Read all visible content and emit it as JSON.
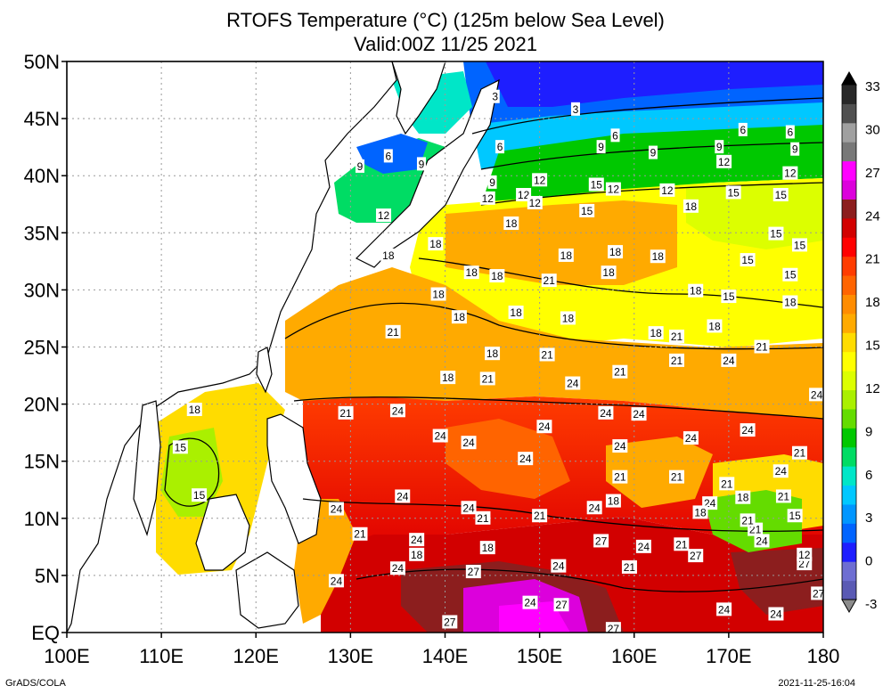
{
  "title": {
    "line1": "RTOFS Temperature (°C) (125m below Sea Level)",
    "line2": "Valid:00Z 11/25 2021"
  },
  "axes": {
    "lat_labels": [
      "EQ",
      "5N",
      "10N",
      "15N",
      "20N",
      "25N",
      "30N",
      "35N",
      "40N",
      "45N",
      "50N"
    ],
    "lon_labels": [
      "100E",
      "110E",
      "120E",
      "130E",
      "140E",
      "150E",
      "160E",
      "170E",
      "180"
    ],
    "lat_range": [
      0,
      50
    ],
    "lon_range": [
      100,
      180
    ],
    "grid": "dotted"
  },
  "colorbar": {
    "tick_labels": [
      "-3",
      "0",
      "3",
      "6",
      "9",
      "12",
      "15",
      "18",
      "21",
      "24",
      "27",
      "30",
      "33"
    ],
    "colors": [
      "#5a5ab4",
      "#6e6ed2",
      "#1e1eff",
      "#0064ff",
      "#0096ff",
      "#00c8ff",
      "#00e6c8",
      "#00dc64",
      "#00c800",
      "#64dc00",
      "#aaf000",
      "#dcff00",
      "#ffff00",
      "#ffdc00",
      "#ffaa00",
      "#ff8c00",
      "#ff6400",
      "#ff3c00",
      "#ff0000",
      "#d20000",
      "#8c1e1e",
      "#dc00dc",
      "#ff00ff",
      "#787878",
      "#a0a0a0",
      "#505050",
      "#282828"
    ]
  },
  "contour_labels": [
    {
      "text": "3",
      "lon": 145.3,
      "lat": 46.9
    },
    {
      "text": "3",
      "lon": 153.8,
      "lat": 45.8
    },
    {
      "text": "6",
      "lon": 134.0,
      "lat": 41.7
    },
    {
      "text": "6",
      "lon": 145.8,
      "lat": 42.5
    },
    {
      "text": "6",
      "lon": 158.0,
      "lat": 43.5
    },
    {
      "text": "6",
      "lon": 171.5,
      "lat": 44.0
    },
    {
      "text": "6",
      "lon": 176.5,
      "lat": 43.8
    },
    {
      "text": "9",
      "lon": 131.0,
      "lat": 40.8
    },
    {
      "text": "9",
      "lon": 137.5,
      "lat": 41.0
    },
    {
      "text": "9",
      "lon": 156.5,
      "lat": 42.5
    },
    {
      "text": "9",
      "lon": 162.0,
      "lat": 42.0
    },
    {
      "text": "9",
      "lon": 177.0,
      "lat": 42.3
    },
    {
      "text": "9",
      "lon": 169.0,
      "lat": 42.5
    },
    {
      "text": "9",
      "lon": 145.0,
      "lat": 39.4
    },
    {
      "text": "12",
      "lon": 133.5,
      "lat": 36.5
    },
    {
      "text": "12",
      "lon": 144.5,
      "lat": 38.0
    },
    {
      "text": "12",
      "lon": 150.0,
      "lat": 39.6
    },
    {
      "text": "12",
      "lon": 148.3,
      "lat": 38.3
    },
    {
      "text": "12",
      "lon": 149.5,
      "lat": 37.6
    },
    {
      "text": "12",
      "lon": 157.8,
      "lat": 38.8
    },
    {
      "text": "12",
      "lon": 163.5,
      "lat": 38.7
    },
    {
      "text": "12",
      "lon": 169.5,
      "lat": 41.2
    },
    {
      "text": "12",
      "lon": 176.5,
      "lat": 40.2
    },
    {
      "text": "15",
      "lon": 156.0,
      "lat": 39.2
    },
    {
      "text": "15",
      "lon": 155.0,
      "lat": 36.9
    },
    {
      "text": "15",
      "lon": 170.5,
      "lat": 38.5
    },
    {
      "text": "15",
      "lon": 175.5,
      "lat": 38.3
    },
    {
      "text": "15",
      "lon": 175.0,
      "lat": 34.9
    },
    {
      "text": "15",
      "lon": 177.5,
      "lat": 33.9
    },
    {
      "text": "15",
      "lon": 172.0,
      "lat": 32.6
    },
    {
      "text": "15",
      "lon": 176.5,
      "lat": 31.3
    },
    {
      "text": "15",
      "lon": 170.0,
      "lat": 29.4
    },
    {
      "text": "18",
      "lon": 134.0,
      "lat": 33.0
    },
    {
      "text": "18",
      "lon": 139.0,
      "lat": 34.0
    },
    {
      "text": "18",
      "lon": 147.0,
      "lat": 35.8
    },
    {
      "text": "18",
      "lon": 166.0,
      "lat": 37.3
    },
    {
      "text": "18",
      "lon": 152.8,
      "lat": 33.0
    },
    {
      "text": "18",
      "lon": 158.0,
      "lat": 33.3
    },
    {
      "text": "18",
      "lon": 162.5,
      "lat": 32.9
    },
    {
      "text": "18",
      "lon": 142.8,
      "lat": 31.5
    },
    {
      "text": "18",
      "lon": 145.5,
      "lat": 31.2
    },
    {
      "text": "18",
      "lon": 157.3,
      "lat": 31.5
    },
    {
      "text": "18",
      "lon": 139.3,
      "lat": 29.6
    },
    {
      "text": "18",
      "lon": 166.5,
      "lat": 29.9
    },
    {
      "text": "18",
      "lon": 176.5,
      "lat": 28.9
    },
    {
      "text": "18",
      "lon": 147.5,
      "lat": 28.0
    },
    {
      "text": "18",
      "lon": 141.5,
      "lat": 27.6
    },
    {
      "text": "18",
      "lon": 153.0,
      "lat": 27.5
    },
    {
      "text": "18",
      "lon": 168.5,
      "lat": 26.8
    },
    {
      "text": "18",
      "lon": 162.3,
      "lat": 26.2
    },
    {
      "text": "18",
      "lon": 145.0,
      "lat": 24.4
    },
    {
      "text": "18",
      "lon": 140.3,
      "lat": 22.3
    },
    {
      "text": "18",
      "lon": 113.5,
      "lat": 19.5
    },
    {
      "text": "21",
      "lon": 151.0,
      "lat": 30.8
    },
    {
      "text": "21",
      "lon": 134.5,
      "lat": 26.3
    },
    {
      "text": "21",
      "lon": 164.5,
      "lat": 25.9
    },
    {
      "text": "21",
      "lon": 150.8,
      "lat": 24.3
    },
    {
      "text": "21",
      "lon": 173.5,
      "lat": 25.0
    },
    {
      "text": "21",
      "lon": 164.5,
      "lat": 23.8
    },
    {
      "text": "21",
      "lon": 158.5,
      "lat": 22.8
    },
    {
      "text": "21",
      "lon": 144.5,
      "lat": 22.2
    },
    {
      "text": "21",
      "lon": 129.5,
      "lat": 19.2
    },
    {
      "text": "21",
      "lon": 177.5,
      "lat": 15.7
    },
    {
      "text": "21",
      "lon": 158.5,
      "lat": 13.6
    },
    {
      "text": "21",
      "lon": 164.5,
      "lat": 13.6
    },
    {
      "text": "21",
      "lon": 169.8,
      "lat": 13.0
    },
    {
      "text": "21",
      "lon": 175.8,
      "lat": 11.9
    },
    {
      "text": "21",
      "lon": 144.0,
      "lat": 10.0
    },
    {
      "text": "21",
      "lon": 150.0,
      "lat": 10.2
    },
    {
      "text": "21",
      "lon": 131.0,
      "lat": 8.6
    },
    {
      "text": "21",
      "lon": 172.8,
      "lat": 9.0
    },
    {
      "text": "21",
      "lon": 165.0,
      "lat": 7.7
    },
    {
      "text": "21",
      "lon": 159.5,
      "lat": 5.7
    },
    {
      "text": "24",
      "lon": 170.0,
      "lat": 23.8
    },
    {
      "text": "24",
      "lon": 179.3,
      "lat": 20.8
    },
    {
      "text": "24",
      "lon": 153.5,
      "lat": 21.8
    },
    {
      "text": "24",
      "lon": 135.0,
      "lat": 19.4
    },
    {
      "text": "24",
      "lon": 157.0,
      "lat": 19.2
    },
    {
      "text": "24",
      "lon": 160.5,
      "lat": 19.1
    },
    {
      "text": "24",
      "lon": 150.5,
      "lat": 18.0
    },
    {
      "text": "24",
      "lon": 172.0,
      "lat": 17.7
    },
    {
      "text": "24",
      "lon": 139.5,
      "lat": 17.2
    },
    {
      "text": "24",
      "lon": 142.5,
      "lat": 16.6
    },
    {
      "text": "24",
      "lon": 158.5,
      "lat": 16.3
    },
    {
      "text": "24",
      "lon": 166.0,
      "lat": 17.0
    },
    {
      "text": "24",
      "lon": 148.5,
      "lat": 15.2
    },
    {
      "text": "24",
      "lon": 175.5,
      "lat": 14.1
    },
    {
      "text": "24",
      "lon": 135.5,
      "lat": 11.9
    },
    {
      "text": "24",
      "lon": 128.5,
      "lat": 10.8
    },
    {
      "text": "24",
      "lon": 142.5,
      "lat": 10.9
    },
    {
      "text": "24",
      "lon": 155.8,
      "lat": 10.9
    },
    {
      "text": "24",
      "lon": 168.0,
      "lat": 11.3
    },
    {
      "text": "24",
      "lon": 173.5,
      "lat": 8.0
    },
    {
      "text": "24",
      "lon": 137.0,
      "lat": 8.1
    },
    {
      "text": "24",
      "lon": 161.0,
      "lat": 7.5
    },
    {
      "text": "24",
      "lon": 135.0,
      "lat": 5.6
    },
    {
      "text": "24",
      "lon": 152.0,
      "lat": 5.8
    },
    {
      "text": "24",
      "lon": 128.5,
      "lat": 4.5
    },
    {
      "text": "24",
      "lon": 149.0,
      "lat": 2.6
    },
    {
      "text": "24",
      "lon": 169.5,
      "lat": 2.0
    },
    {
      "text": "24",
      "lon": 175.0,
      "lat": 1.6
    },
    {
      "text": "27",
      "lon": 156.5,
      "lat": 8.0
    },
    {
      "text": "27",
      "lon": 166.5,
      "lat": 6.7
    },
    {
      "text": "27",
      "lon": 178.0,
      "lat": 6.0
    },
    {
      "text": "27",
      "lon": 143.0,
      "lat": 5.3
    },
    {
      "text": "27",
      "lon": 179.5,
      "lat": 3.4
    },
    {
      "text": "27",
      "lon": 152.3,
      "lat": 2.4
    },
    {
      "text": "27",
      "lon": 140.5,
      "lat": 0.9
    },
    {
      "text": "27",
      "lon": 157.8,
      "lat": 0.3
    },
    {
      "text": "18",
      "lon": 167.0,
      "lat": 10.5
    },
    {
      "text": "18",
      "lon": 171.5,
      "lat": 11.8
    },
    {
      "text": "18",
      "lon": 157.8,
      "lat": 11.5
    },
    {
      "text": "18",
      "lon": 144.5,
      "lat": 7.4
    },
    {
      "text": "18",
      "lon": 137.0,
      "lat": 6.8
    },
    {
      "text": "15",
      "lon": 112.0,
      "lat": 16.2
    },
    {
      "text": "15",
      "lon": 114.0,
      "lat": 12.0
    },
    {
      "text": "15",
      "lon": 177.0,
      "lat": 10.2
    },
    {
      "text": "12",
      "lon": 178.0,
      "lat": 6.8
    },
    {
      "text": "21",
      "lon": 172.0,
      "lat": 9.8
    }
  ],
  "footer": {
    "credit": "GrADS/COLA",
    "timestamp": "2021-11-25-16:04"
  }
}
